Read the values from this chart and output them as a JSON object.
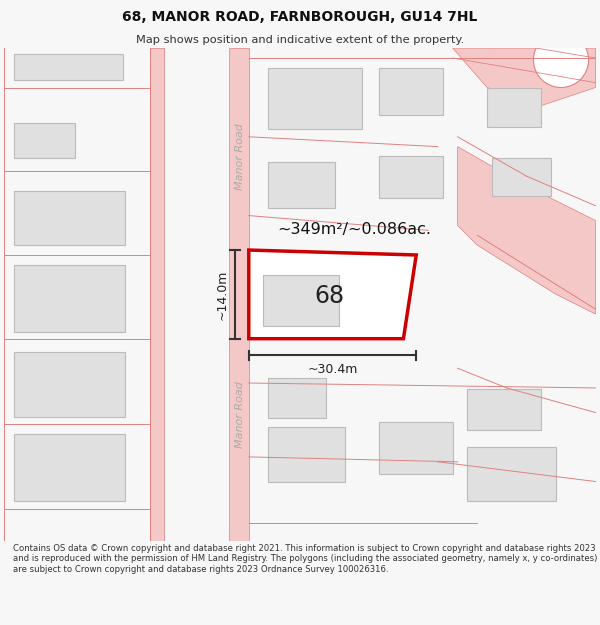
{
  "title": "68, MANOR ROAD, FARNBOROUGH, GU14 7HL",
  "subtitle": "Map shows position and indicative extent of the property.",
  "footer": "Contains OS data © Crown copyright and database right 2021. This information is subject to Crown copyright and database rights 2023 and is reproduced with the permission of HM Land Registry. The polygons (including the associated geometry, namely x, y co-ordinates) are subject to Crown copyright and database rights 2023 Ordnance Survey 100026316.",
  "bg_color": "#f7f7f7",
  "map_bg": "#ffffff",
  "road_color": "#f5c8c8",
  "road_stroke": "#e08080",
  "building_fill": "#e0e0e0",
  "building_stroke": "#bbbbbb",
  "highlight_fill": "#ffffff",
  "highlight_stroke": "#cc0000",
  "road_label": "Manor Road",
  "area_label": "~349m²/~0.086ac.",
  "number_label": "68",
  "dim_width": "~30.4m",
  "dim_height": "~14.0m"
}
